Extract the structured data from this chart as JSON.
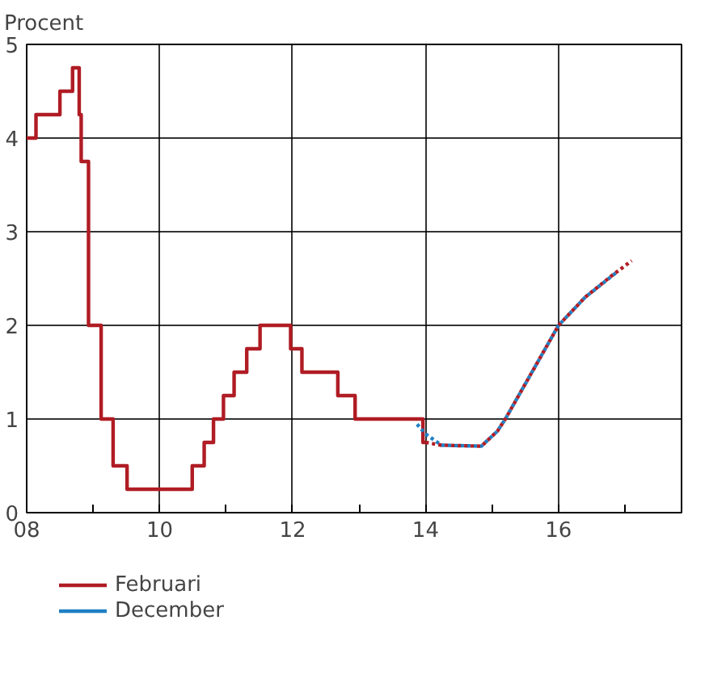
{
  "chart_data": {
    "type": "line",
    "ylabel": "Procent",
    "xlim": [
      2008,
      2017.85
    ],
    "ylim": [
      0,
      5
    ],
    "xticks": [
      {
        "value": 2008,
        "label": "08"
      },
      {
        "value": 2009,
        "label": null
      },
      {
        "value": 2010,
        "label": "10"
      },
      {
        "value": 2011,
        "label": null
      },
      {
        "value": 2012,
        "label": "12"
      },
      {
        "value": 2013,
        "label": null
      },
      {
        "value": 2014,
        "label": "14"
      },
      {
        "value": 2015,
        "label": null
      },
      {
        "value": 2016,
        "label": "16"
      },
      {
        "value": 2017,
        "label": null
      }
    ],
    "yticks": [
      0,
      1,
      2,
      3,
      4,
      5
    ],
    "grid": true,
    "legend": "bottom",
    "series": [
      {
        "name": "Februari",
        "color": "#b01c24",
        "type": "step",
        "line_style": "solid",
        "x": [
          2008,
          2008.14,
          2008.5,
          2008.69,
          2008.79,
          2008.82,
          2008.93,
          2009.12,
          2009.3,
          2009.51,
          2010.49,
          2010.67,
          2010.81,
          2010.96,
          2011.12,
          2011.31,
          2011.51,
          2011.97,
          2012.14,
          2012.68,
          2012.94,
          2013.96,
          2014.0
        ],
        "values": [
          4.0,
          4.25,
          4.5,
          4.75,
          4.25,
          3.75,
          2.0,
          1.0,
          0.5,
          0.25,
          0.5,
          0.75,
          1.0,
          1.25,
          1.5,
          1.75,
          2.0,
          1.75,
          1.5,
          1.25,
          1.0,
          0.75,
          0.75
        ]
      },
      {
        "name": "December",
        "color": "#1f7fc4",
        "line_style": "dotted",
        "x": [
          2013.84,
          2014.0,
          2014.24,
          2014.84,
          2015.08,
          2015.2,
          2015.6,
          2016.0,
          2016.4,
          2016.88
        ],
        "values": [
          0.97,
          0.84,
          0.72,
          0.71,
          0.87,
          1.0,
          1.5,
          2.0,
          2.3,
          2.57
        ]
      },
      {
        "color": "#b01c24",
        "line_style": "dotted",
        "x": [
          2014.0,
          2014.24,
          2014.84,
          2015.08,
          2015.2,
          2015.6,
          2016.0,
          2016.4,
          2016.8,
          2017.1
        ],
        "values": [
          0.75,
          0.72,
          0.71,
          0.87,
          1.0,
          1.5,
          2.0,
          2.3,
          2.53,
          2.69
        ]
      }
    ]
  }
}
